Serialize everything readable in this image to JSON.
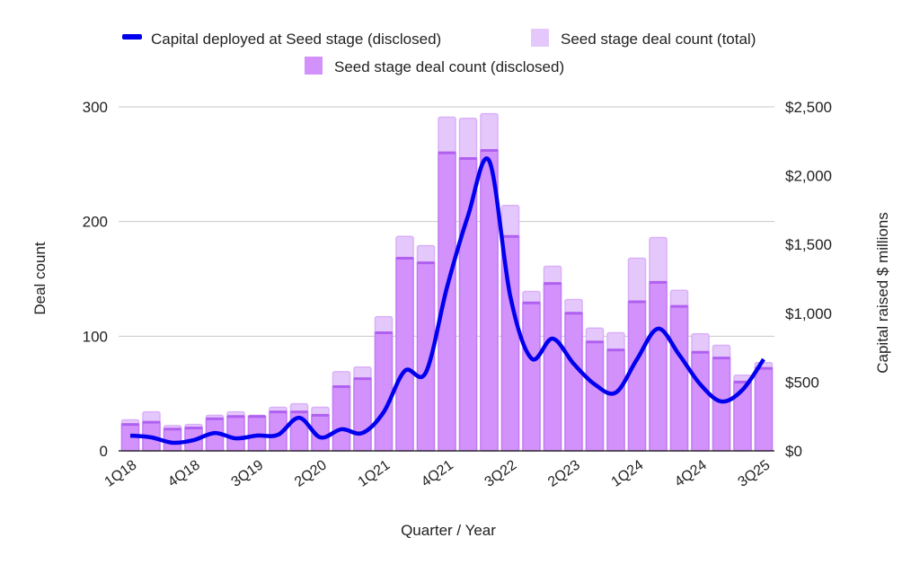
{
  "chart_data": {
    "type": "bar+line",
    "xlabel": "Quarter / Year",
    "ylabel": "Deal count",
    "y2label": "Capital raised $ millions",
    "ylim": [
      0,
      300
    ],
    "y2lim": [
      0,
      2500
    ],
    "yticks": [
      "0",
      "100",
      "200",
      "300"
    ],
    "y2ticks": [
      "$0",
      "$500",
      "$1,000",
      "$1,500",
      "$2,000",
      "$2,500"
    ],
    "grid": true,
    "legend_position": "top",
    "categories": [
      "1Q18",
      "2Q18",
      "3Q18",
      "4Q18",
      "1Q19",
      "2Q19",
      "3Q19",
      "4Q19",
      "1Q20",
      "2Q20",
      "3Q20",
      "4Q20",
      "1Q21",
      "2Q21",
      "3Q21",
      "4Q21",
      "1Q22",
      "2Q22",
      "3Q22",
      "4Q22",
      "1Q23",
      "2Q23",
      "3Q23",
      "4Q23",
      "1Q24",
      "2Q24",
      "3Q24",
      "4Q24",
      "1Q25",
      "2Q25",
      "3Q25"
    ],
    "xtick_labels": [
      "1Q18",
      "4Q18",
      "3Q19",
      "2Q20",
      "1Q21",
      "4Q21",
      "3Q22",
      "2Q23",
      "1Q24",
      "4Q24",
      "3Q25"
    ],
    "series": [
      {
        "name": "Seed stage deal count (total)",
        "type": "bar",
        "axis": "left",
        "color": "#e5c8fb",
        "values": [
          27,
          34,
          22,
          23,
          31,
          34,
          31,
          38,
          41,
          38,
          69,
          73,
          117,
          187,
          179,
          291,
          290,
          294,
          214,
          139,
          161,
          132,
          107,
          103,
          168,
          186,
          140,
          102,
          92,
          66,
          77
        ]
      },
      {
        "name": "Seed stage deal count (disclosed)",
        "type": "bar",
        "axis": "left",
        "color": "#d291fb",
        "values": [
          23,
          25,
          19,
          20,
          28,
          30,
          30,
          34,
          34,
          31,
          56,
          63,
          103,
          168,
          164,
          260,
          255,
          262,
          187,
          129,
          146,
          120,
          95,
          88,
          130,
          147,
          126,
          86,
          81,
          60,
          72
        ]
      },
      {
        "name": "Capital deployed at Seed stage (disclosed)",
        "type": "line",
        "axis": "right",
        "color": "#0000ee",
        "values": [
          111,
          98,
          59,
          78,
          130,
          91,
          111,
          117,
          241,
          98,
          157,
          130,
          281,
          581,
          570,
          1188,
          1710,
          2108,
          1123,
          672,
          816,
          633,
          483,
          424,
          666,
          888,
          698,
          483,
          359,
          444,
          666
        ]
      }
    ]
  }
}
